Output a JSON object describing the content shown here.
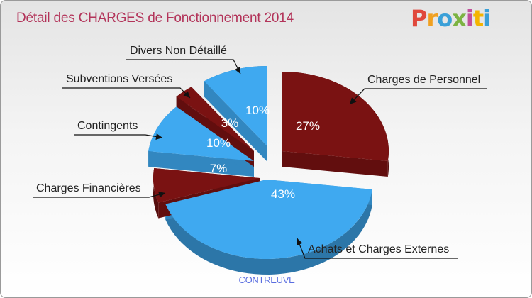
{
  "header": {
    "title": "Détail des CHARGES de Fonctionnement 2014"
  },
  "logo": {
    "p": "P",
    "r": "r",
    "o": "o",
    "x": "x",
    "i1": "i",
    "t": "t",
    "i2": "i"
  },
  "footer": {
    "city": "CONTREUVE"
  },
  "colors": {
    "dark_red": "#7a1212",
    "blue": "#3fa9f0",
    "title": "#b3345a",
    "city": "#5a6ee0"
  },
  "chart_data": {
    "type": "pie",
    "title": "Détail des CHARGES de Fonctionnement 2014",
    "slices": [
      {
        "name": "Charges de Personnel",
        "value": 27,
        "label": "27%"
      },
      {
        "name": "Achats et Charges Externes",
        "value": 43,
        "label": "43%"
      },
      {
        "name": "Charges Financières",
        "value": 7,
        "label": "7%"
      },
      {
        "name": "Contingents",
        "value": 10,
        "label": "10%"
      },
      {
        "name": "Subventions Versées",
        "value": 3,
        "label": "3%"
      },
      {
        "name": "Divers Non Détaillé",
        "value": 10,
        "label": "10%"
      }
    ]
  }
}
